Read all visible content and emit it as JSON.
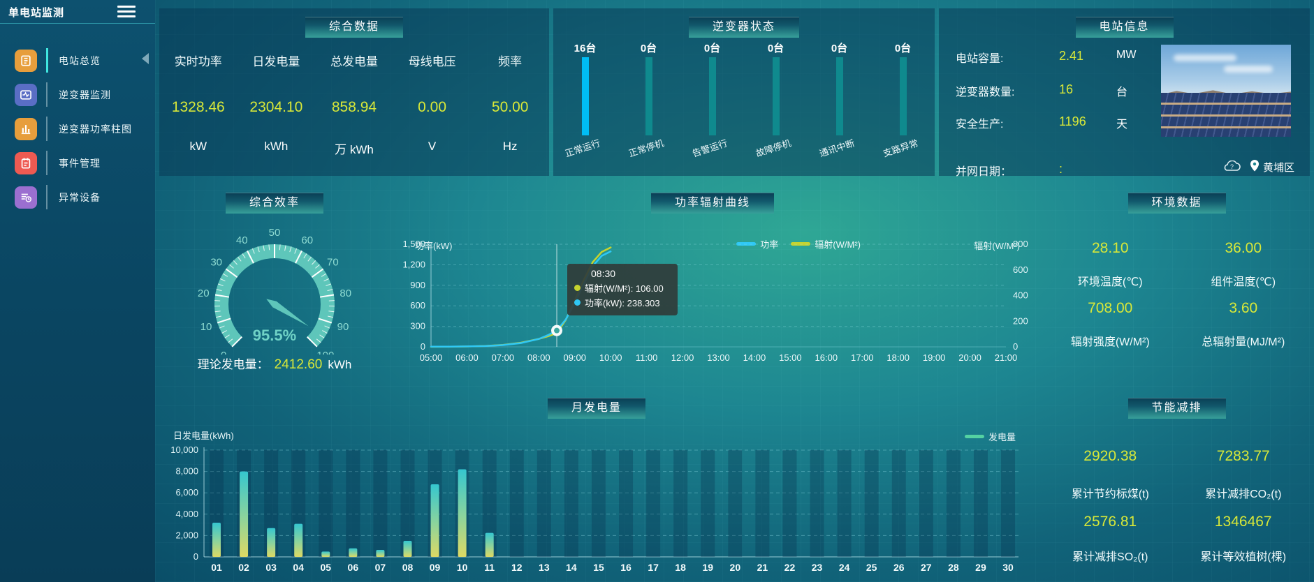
{
  "app": {
    "title": "单电站监测"
  },
  "sidebar": {
    "title": "单电站监测",
    "items": [
      {
        "label": "电站总览",
        "active": true,
        "color": "#e79e3c",
        "icon": "report-icon"
      },
      {
        "label": "逆变器监测",
        "active": false,
        "color": "#5a6ec5",
        "icon": "monitor-icon"
      },
      {
        "label": "逆变器功率柱图",
        "active": false,
        "color": "#e79e3c",
        "icon": "bar-chart-icon"
      },
      {
        "label": "事件管理",
        "active": false,
        "color": "#ee5a52",
        "icon": "event-icon"
      },
      {
        "label": "异常设备",
        "active": false,
        "color": "#9b6fd0",
        "icon": "device-icon"
      }
    ]
  },
  "summary": {
    "title": "综合数据",
    "metrics": [
      {
        "label": "实时功率",
        "value": "1328.46",
        "unit": "kW"
      },
      {
        "label": "日发电量",
        "value": "2304.10",
        "unit": "kWh"
      },
      {
        "label": "总发电量",
        "value": "858.94",
        "unit": "万 kWh"
      },
      {
        "label": "母线电压",
        "value": "0.00",
        "unit": "V"
      },
      {
        "label": "频率",
        "value": "50.00",
        "unit": "Hz"
      }
    ]
  },
  "inverter_status": {
    "title": "逆变器状态",
    "bars": [
      {
        "count": "16台",
        "label": "正常运行",
        "highlight": true
      },
      {
        "count": "0台",
        "label": "正常停机",
        "highlight": false
      },
      {
        "count": "0台",
        "label": "告警运行",
        "highlight": false
      },
      {
        "count": "0台",
        "label": "故障停机",
        "highlight": false
      },
      {
        "count": "0台",
        "label": "通讯中断",
        "highlight": false
      },
      {
        "count": "0台",
        "label": "支路异常",
        "highlight": false
      }
    ]
  },
  "station_info": {
    "title": "电站信息",
    "rows": [
      {
        "label": "电站容量:",
        "value": "2.41",
        "unit": "MW",
        "top": 58
      },
      {
        "label": "逆变器数量:",
        "value": "16",
        "unit": "台",
        "top": 106
      },
      {
        "label": "安全生产:",
        "value": "1196",
        "unit": "天",
        "top": 152
      },
      {
        "label": "并网日期：",
        "value": ":",
        "unit": "",
        "top": 220
      }
    ],
    "location": "黄埔区"
  },
  "efficiency": {
    "title": "综合效率",
    "gauge_value": 95.5,
    "gauge_label": "95.5%",
    "gauge_min": 0,
    "gauge_max": 100,
    "tick_labels": [
      "0",
      "10",
      "20",
      "30",
      "40",
      "50",
      "60",
      "70",
      "80",
      "90",
      "100"
    ],
    "theory_label": "理论发电量：",
    "theory_value": "2412.60",
    "theory_unit": "kWh",
    "accent_color": "#5ec6ba"
  },
  "environment": {
    "title": "环境数据",
    "stats": [
      {
        "value": "28.10",
        "label": "环境温度(℃)"
      },
      {
        "value": "36.00",
        "label": "组件温度(℃)"
      },
      {
        "value": "708.00",
        "label": "辐射强度(W/M²)"
      },
      {
        "value": "3.60",
        "label": "总辐射量(MJ/M²)"
      }
    ]
  },
  "energy_saving": {
    "title": "节能减排",
    "stats": [
      {
        "value": "2920.38",
        "label": "累计节约标煤(t)"
      },
      {
        "value": "7283.77",
        "label": "累计减排CO₂(t)"
      },
      {
        "value": "2576.81",
        "label": "累计减排SO₂(t)"
      },
      {
        "value": "1346467",
        "label": "累计等效植树(棵)"
      }
    ]
  },
  "chart_data": [
    {
      "id": "power_radiation",
      "type": "line",
      "title": "功率辐射曲线",
      "ylabel_left": "功率(kW)",
      "ylabel_right": "辐射(W/M²)",
      "ylim_left": [
        0,
        1500
      ],
      "yticks_left": [
        "0",
        "300",
        "600",
        "900",
        "1,200",
        "1,500"
      ],
      "ylim_right": [
        0,
        800
      ],
      "yticks_right": [
        "0",
        "200",
        "400",
        "600",
        "800"
      ],
      "x_ticks": [
        "05:00",
        "06:00",
        "07:00",
        "08:00",
        "09:00",
        "10:00",
        "11:00",
        "12:00",
        "13:00",
        "14:00",
        "15:00",
        "16:00",
        "17:00",
        "18:00",
        "19:00",
        "20:00",
        "21:00"
      ],
      "legend": [
        {
          "name": "功率",
          "color": "#2fc8f5"
        },
        {
          "name": "辐射(W/M²)",
          "color": "#c6d32f"
        }
      ],
      "grid": "dashed",
      "series": [
        {
          "name": "辐射",
          "axis": "right",
          "color": "#c6d32f",
          "points": [
            [
              0,
              0
            ],
            [
              0.5,
              1
            ],
            [
              1,
              3
            ],
            [
              1.5,
              7
            ],
            [
              2,
              15
            ],
            [
              2.5,
              32
            ],
            [
              3,
              62
            ],
            [
              3.25,
              82
            ],
            [
              3.5,
              106
            ],
            [
              3.75,
              210
            ],
            [
              4,
              360
            ],
            [
              4.25,
              520
            ],
            [
              4.5,
              660
            ],
            [
              4.75,
              740
            ],
            [
              5,
              775
            ]
          ]
        },
        {
          "name": "功率",
          "axis": "left",
          "color": "#2fc8f5",
          "points": [
            [
              0,
              2
            ],
            [
              0.5,
              3
            ],
            [
              1,
              6
            ],
            [
              1.5,
              12
            ],
            [
              2,
              25
            ],
            [
              2.5,
              55
            ],
            [
              3,
              115
            ],
            [
              3.25,
              170
            ],
            [
              3.5,
              238.3
            ],
            [
              3.75,
              400
            ],
            [
              4,
              640
            ],
            [
              4.25,
              920
            ],
            [
              4.5,
              1180
            ],
            [
              4.75,
              1330
            ],
            [
              5,
              1395
            ]
          ]
        }
      ],
      "highlight": {
        "time": "08:30",
        "hour_offset": 3.5,
        "power": 238.3
      },
      "tooltip": {
        "time": "08:30",
        "lines": [
          {
            "dot_color": "#c6d32f",
            "text": "辐射(W/M²): 106.00"
          },
          {
            "dot_color": "#2fc8f5",
            "text": "功率(kW): 238.303"
          }
        ]
      }
    },
    {
      "id": "monthly_generation",
      "type": "bar",
      "title": "月发电量",
      "ylabel": "日发电量(kWh)",
      "ylim": [
        0,
        10000
      ],
      "yticks": [
        "0",
        "2,000",
        "4,000",
        "6,000",
        "8,000",
        "10,000"
      ],
      "categories": [
        "01",
        "02",
        "03",
        "04",
        "05",
        "06",
        "07",
        "08",
        "09",
        "10",
        "11",
        "12",
        "13",
        "14",
        "15",
        "16",
        "17",
        "18",
        "19",
        "20",
        "21",
        "22",
        "23",
        "24",
        "25",
        "26",
        "27",
        "28",
        "29",
        "30"
      ],
      "values": [
        3200,
        8000,
        2700,
        3100,
        500,
        800,
        650,
        1500,
        6800,
        8200,
        2250,
        0,
        0,
        0,
        0,
        0,
        0,
        0,
        0,
        0,
        0,
        0,
        0,
        0,
        0,
        0,
        0,
        0,
        0,
        0
      ],
      "legend": [
        {
          "name": "发电量",
          "color": "#54d2a2"
        }
      ],
      "bar_gradient": [
        "#35c6cf",
        "#8ed49b",
        "#ddd964"
      ],
      "grid": "dashed"
    }
  ]
}
